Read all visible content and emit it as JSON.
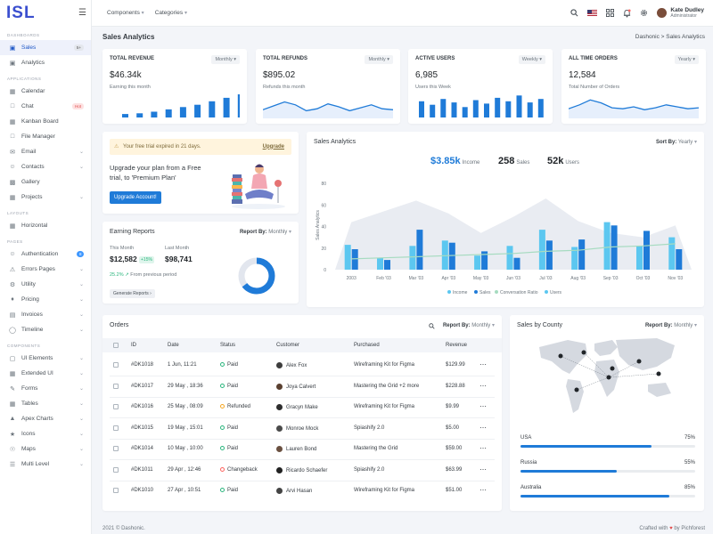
{
  "brand": "ISL",
  "sidebar": {
    "sections": [
      {
        "title": "DASHBOARDS",
        "items": [
          {
            "label": "Sales",
            "icon": "monitor-icon",
            "badge": "5+",
            "badge_type": "gray",
            "active": true
          },
          {
            "label": "Analytics",
            "icon": "chart-icon"
          }
        ]
      },
      {
        "title": "APPLICATIONS",
        "items": [
          {
            "label": "Calendar",
            "icon": "calendar-icon"
          },
          {
            "label": "Chat",
            "icon": "chat-icon",
            "badge": "Hot",
            "badge_type": "red"
          },
          {
            "label": "Kanban Board",
            "icon": "kanban-icon"
          },
          {
            "label": "File Manager",
            "icon": "folder-icon"
          },
          {
            "label": "Email",
            "icon": "email-icon",
            "chevron": true
          },
          {
            "label": "Contacts",
            "icon": "contacts-icon",
            "chevron": true
          },
          {
            "label": "Gallery",
            "icon": "gallery-icon"
          },
          {
            "label": "Projects",
            "icon": "projects-icon",
            "chevron": true
          }
        ]
      },
      {
        "title": "LAYOUTS",
        "items": [
          {
            "label": "Horizontal",
            "icon": "layout-icon"
          }
        ]
      },
      {
        "title": "PAGES",
        "items": [
          {
            "label": "Authentication",
            "icon": "user-icon",
            "badge": "8",
            "badge_type": "blue"
          },
          {
            "label": "Errors Pages",
            "icon": "error-icon",
            "chevron": true
          },
          {
            "label": "Utility",
            "icon": "utility-icon",
            "chevron": true
          },
          {
            "label": "Pricing",
            "icon": "pricing-icon",
            "chevron": true
          },
          {
            "label": "Invoices",
            "icon": "invoice-icon",
            "chevron": true
          },
          {
            "label": "Timeline",
            "icon": "timeline-icon",
            "chevron": true
          }
        ]
      },
      {
        "title": "COMPONENTS",
        "items": [
          {
            "label": "UI Elements",
            "icon": "elements-icon",
            "chevron": true
          },
          {
            "label": "Extended UI",
            "icon": "extended-icon",
            "chevron": true
          },
          {
            "label": "Forms",
            "icon": "forms-icon",
            "chevron": true
          },
          {
            "label": "Tables",
            "icon": "table-icon",
            "chevron": true
          },
          {
            "label": "Apex Charts",
            "icon": "apex-icon",
            "chevron": true
          },
          {
            "label": "Icons",
            "icon": "icons-icon",
            "chevron": true
          },
          {
            "label": "Maps",
            "icon": "map-icon",
            "chevron": true
          },
          {
            "label": "Multi Level",
            "icon": "multilevel-icon",
            "chevron": true
          }
        ]
      }
    ]
  },
  "topbar": {
    "components": "Components",
    "categories": "Categories",
    "user_name": "Kate Dudley",
    "user_role": "Administrator"
  },
  "page": {
    "title": "Sales Analytics",
    "breadcrumb": "Dashonic  >  Sales Analytics"
  },
  "stats": [
    {
      "title": "TOTAL REVENUE",
      "select": "Monthly",
      "value": "$46.34k",
      "sub": "Earning this month",
      "type": "bar",
      "bars": [
        0.15,
        0.18,
        0.25,
        0.35,
        0.45,
        0.55,
        0.7,
        0.85,
        1.0
      ]
    },
    {
      "title": "TOTAL REFUNDS",
      "select": "Monthly",
      "value": "$895.02",
      "sub": "Refunds this month",
      "type": "line",
      "line": [
        0.35,
        0.55,
        0.75,
        0.6,
        0.3,
        0.4,
        0.65,
        0.5,
        0.3,
        0.45,
        0.6,
        0.4,
        0.35
      ]
    },
    {
      "title": "ACTIVE USERS",
      "select": "Weekly",
      "value": "6,985",
      "sub": "Users this Week",
      "type": "bar",
      "bars": [
        0.7,
        0.55,
        0.8,
        0.65,
        0.45,
        0.75,
        0.6,
        0.85,
        0.7,
        0.95,
        0.65,
        0.8
      ]
    },
    {
      "title": "ALL TIME ORDERS",
      "select": "Yearly",
      "value": "12,584",
      "sub": "Total Number of Orders",
      "type": "line",
      "line": [
        0.4,
        0.6,
        0.85,
        0.7,
        0.45,
        0.4,
        0.5,
        0.35,
        0.45,
        0.6,
        0.5,
        0.4,
        0.45
      ]
    }
  ],
  "trial": {
    "alert": "Your free trial expired in 21 days.",
    "alert_link": "Upgrade",
    "headline": "Upgrade your plan from a Free trial, to 'Premium Plan'",
    "button": "Upgrade Account!"
  },
  "earning": {
    "title": "Earning Reports",
    "report_by": "Report By:",
    "report_val": "Monthly",
    "this_month_label": "This Month",
    "this_month_val": "$12,582",
    "growth": "+15%",
    "last_month_label": "Last Month",
    "last_month_val": "$98,741",
    "prev": "25.2%",
    "prev_text": "From previous period",
    "button": "Generate Reports"
  },
  "sales_analytics": {
    "title": "Sales Analytics",
    "sort_label": "Sort By:",
    "sort_val": "Yearly",
    "income_val": "$3.85k",
    "income_label": "Income",
    "sales_val": "258",
    "sales_label": "Sales",
    "users_val": "52k",
    "users_label": "Users"
  },
  "chart_data": {
    "type": "bar",
    "ylabel": "Sales Analytics",
    "ylim": [
      0,
      80
    ],
    "yticks": [
      0,
      20,
      40,
      60,
      80
    ],
    "categories": [
      "2003",
      "Feb '03",
      "Mar '03",
      "Apr '03",
      "May '03",
      "Jun '03",
      "Jul '03",
      "Aug '03",
      "Sep '03",
      "Oct '03",
      "Nov '03"
    ],
    "xlabels_shown": [
      "2003",
      "Feb '03",
      "Mar '03",
      "Apr '03",
      "May '03",
      "Jun '03",
      "Jul '03",
      "Aug '03",
      "Sep '03",
      "Oct '03",
      "Nov '03"
    ],
    "series": [
      {
        "name": "Income",
        "color": "#5cc7f0",
        "values": [
          23,
          11,
          22,
          27,
          13,
          22,
          37,
          21,
          44,
          22,
          30
        ]
      },
      {
        "name": "Sales",
        "color": "#1f7bd8",
        "values": [
          19,
          9,
          37,
          25,
          17,
          11,
          27,
          28,
          41,
          36,
          19
        ]
      },
      {
        "name": "Conversation Ratio",
        "color": "#a6dbc0",
        "values": [
          10,
          11,
          12,
          13,
          14,
          15,
          17,
          18,
          21,
          22,
          24
        ]
      },
      {
        "name": "Users",
        "color": "#e9ecf2",
        "values": [
          44,
          54,
          64,
          52,
          34,
          49,
          66,
          45,
          34,
          30,
          41
        ]
      }
    ],
    "legend": [
      "Income",
      "Sales",
      "Conversation Ratio",
      "Users"
    ]
  },
  "orders": {
    "title": "Orders",
    "report_by": "Report By:",
    "report_val": "Monthly",
    "headers": [
      "ID",
      "Date",
      "Status",
      "Customer",
      "Purchased",
      "Revenue"
    ],
    "rows": [
      {
        "id": "#DK1018",
        "date": "1 Jun, 11:21",
        "status": "Paid",
        "st": "paid",
        "customer": "Alex Fox",
        "purchased": "Wireframing Kit for Figma",
        "revenue": "$129.99"
      },
      {
        "id": "#DK1017",
        "date": "29 May , 18:36",
        "status": "Paid",
        "st": "paid",
        "customer": "Joya Calvert",
        "purchased": "Mastering the Grid +2 more",
        "revenue": "$228.88"
      },
      {
        "id": "#DK1016",
        "date": "25 May , 08:09",
        "status": "Refunded",
        "st": "ref",
        "customer": "Gracyn Make",
        "purchased": "Wireframing Kit for Figma",
        "revenue": "$9.99"
      },
      {
        "id": "#DK1015",
        "date": "19 May , 15:01",
        "status": "Paid",
        "st": "paid",
        "customer": "Monroe Mock",
        "purchased": "Spiashify 2.0",
        "revenue": "$5.00"
      },
      {
        "id": "#DK1014",
        "date": "10 May , 10:00",
        "status": "Paid",
        "st": "paid",
        "customer": "Lauren Bond",
        "purchased": "Mastering the Grid",
        "revenue": "$59.00"
      },
      {
        "id": "#DK1011",
        "date": "29 Apr , 12:46",
        "status": "Changeback",
        "st": "chg",
        "customer": "Ricardo Schaefer",
        "purchased": "Spiashify 2.0",
        "revenue": "$63.99"
      },
      {
        "id": "#DK1010",
        "date": "27 Apr , 10:51",
        "status": "Paid",
        "st": "paid",
        "customer": "Arvi Hasan",
        "purchased": "Wireframing Kit for Figma",
        "revenue": "$51.00"
      }
    ]
  },
  "county": {
    "title": "Sales by County",
    "report_by": "Report By:",
    "report_val": "Monthly",
    "items": [
      {
        "name": "USA",
        "pct": "75%",
        "value": 0.75
      },
      {
        "name": "Russia",
        "pct": "55%",
        "value": 0.55
      },
      {
        "name": "Australia",
        "pct": "85%",
        "value": 0.85
      }
    ]
  },
  "footer": {
    "left": "2021 © Dashonic.",
    "right_a": "Crafted with",
    "right_b": "by Pichforest"
  }
}
